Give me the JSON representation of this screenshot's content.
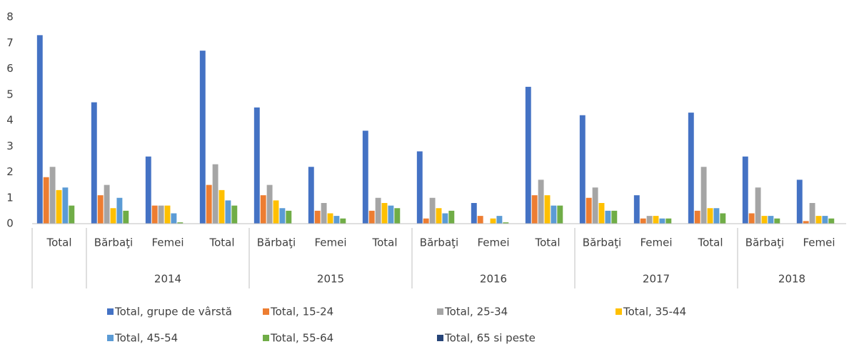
{
  "chart_data": {
    "type": "bar",
    "category_groups": [
      {
        "label": null,
        "categories": [
          "Total"
        ]
      },
      {
        "label": "2014",
        "categories": [
          "Bărbaţi",
          "Femei",
          "Total"
        ]
      },
      {
        "label": "2015",
        "categories": [
          "Bărbaţi",
          "Femei",
          "Total"
        ]
      },
      {
        "label": "2016",
        "categories": [
          "Bărbaţi",
          "Femei",
          "Total"
        ]
      },
      {
        "label": "2017",
        "categories": [
          "Bărbaţi",
          "Femei",
          "Total"
        ]
      },
      {
        "label": "2018",
        "categories": [
          "Bărbaţi",
          "Femei"
        ]
      }
    ],
    "series": [
      {
        "name": "Total, grupe de vârstă",
        "color": "#4472c4",
        "values": [
          7.3,
          4.7,
          2.6,
          6.7,
          4.5,
          2.2,
          3.6,
          2.8,
          0.8,
          5.3,
          4.2,
          1.1,
          4.3,
          2.6,
          1.7
        ]
      },
      {
        "name": "Total, 15-24",
        "color": "#ed7d31",
        "values": [
          1.8,
          1.1,
          0.7,
          1.5,
          1.1,
          0.5,
          0.5,
          0.2,
          0.3,
          1.1,
          1.0,
          0.2,
          0.5,
          0.4,
          0.1
        ]
      },
      {
        "name": "Total, 25-34",
        "color": "#a5a5a5",
        "values": [
          2.2,
          1.5,
          0.7,
          2.3,
          1.5,
          0.8,
          1.0,
          1.0,
          0,
          1.7,
          1.4,
          0.3,
          2.2,
          1.4,
          0.8
        ]
      },
      {
        "name": "Total, 35-44",
        "color": "#ffc000",
        "values": [
          1.3,
          0.6,
          0.7,
          1.3,
          0.9,
          0.4,
          0.8,
          0.6,
          0.2,
          1.1,
          0.8,
          0.3,
          0.6,
          0.3,
          0.3
        ]
      },
      {
        "name": "Total, 45-54",
        "color": "#5b9bd5",
        "values": [
          1.4,
          1.0,
          0.4,
          0.9,
          0.6,
          0.3,
          0.7,
          0.4,
          0.3,
          0.7,
          0.5,
          0.2,
          0.6,
          0.3,
          0.3
        ]
      },
      {
        "name": "Total, 55-64",
        "color": "#70ad47",
        "values": [
          0.7,
          0.5,
          0.05,
          0.7,
          0.5,
          0.2,
          0.6,
          0.5,
          0.05,
          0.7,
          0.5,
          0.2,
          0.4,
          0.2,
          0.2
        ]
      },
      {
        "name": "Total, 65 si peste",
        "color": "#264478",
        "values": [
          0,
          0,
          0,
          0,
          0,
          0,
          0,
          0,
          0,
          0,
          0,
          0,
          0,
          0,
          0
        ]
      }
    ],
    "ylim": [
      0,
      8
    ],
    "yticks": [
      0,
      1,
      2,
      3,
      4,
      5,
      6,
      7,
      8
    ],
    "grid": false
  }
}
